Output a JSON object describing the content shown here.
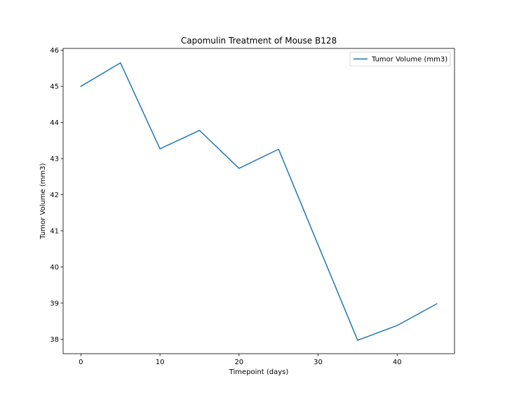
{
  "chart_data": {
    "type": "line",
    "title": "Capomulin Treatment of Mouse B128",
    "xlabel": "Timepoint (days)",
    "ylabel": "Tumor Volume (mm3)",
    "xlim": [
      -2.25,
      47.25
    ],
    "ylim": [
      37.6,
      46.05
    ],
    "xticks": [
      0,
      10,
      20,
      30,
      40
    ],
    "yticks": [
      38,
      39,
      40,
      41,
      42,
      43,
      44,
      45,
      46
    ],
    "grid": false,
    "legend_position": "top-right",
    "series": [
      {
        "name": "Tumor Volume (mm3)",
        "color": "#1f77b4",
        "x": [
          0,
          5,
          10,
          15,
          20,
          25,
          30,
          35,
          40,
          45
        ],
        "values": [
          45.0,
          45.65,
          43.27,
          43.78,
          42.73,
          43.26,
          40.61,
          37.97,
          38.38,
          38.98
        ]
      }
    ]
  }
}
